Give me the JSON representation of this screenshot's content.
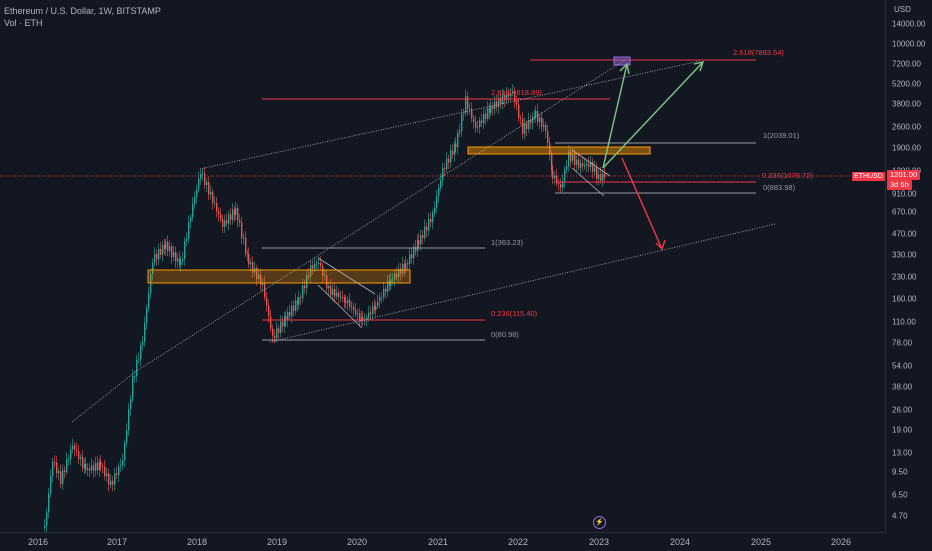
{
  "legend": {
    "title": "Ethereum / U.S. Dollar, 1W, BITSTAMP",
    "volume": "Vol · ETH"
  },
  "price_scale": {
    "currency": "USD",
    "ticks": [
      "14000.00",
      "10000.00",
      "7200.00",
      "5200.00",
      "3800.00",
      "2600.00",
      "1900.00",
      "1200.00",
      "910.00",
      "670.00",
      "470.00",
      "330.00",
      "230.00",
      "160.00",
      "110.00",
      "78.00",
      "54.00",
      "38.00",
      "26.00",
      "19.00",
      "13.00",
      "9.50",
      "6.50",
      "4.70"
    ],
    "current_price": "1201.00",
    "countdown": "3d 5h"
  },
  "time_scale": {
    "ticks": [
      "2016",
      "2017",
      "2018",
      "2019",
      "2020",
      "2021",
      "2022",
      "2023",
      "2024",
      "2025",
      "2026"
    ]
  },
  "symbol_tag": "ETHUSD",
  "fib_labels": {
    "top_level": "2.618(7883.54)",
    "mid_level": "2.618(4618.89)",
    "r1_2022": "1(2039.01)",
    "r0236_2022": "0.236(1076.72)",
    "r0_2022": "0(883.98)",
    "r1_2019": "1(363.23)",
    "r0236_2019": "0.236(115.40)",
    "r0_2019": "0(80.98)"
  },
  "colors": {
    "background": "#131722",
    "up": "#26a69a",
    "down": "#ef5350",
    "fib_red": "#f23645",
    "fib_gray": "#9598a1",
    "zone": "#ff9800",
    "green_arrow": "#81c784",
    "red_arrow": "#f23645"
  },
  "icons": {
    "replay": "lightning-icon"
  }
}
